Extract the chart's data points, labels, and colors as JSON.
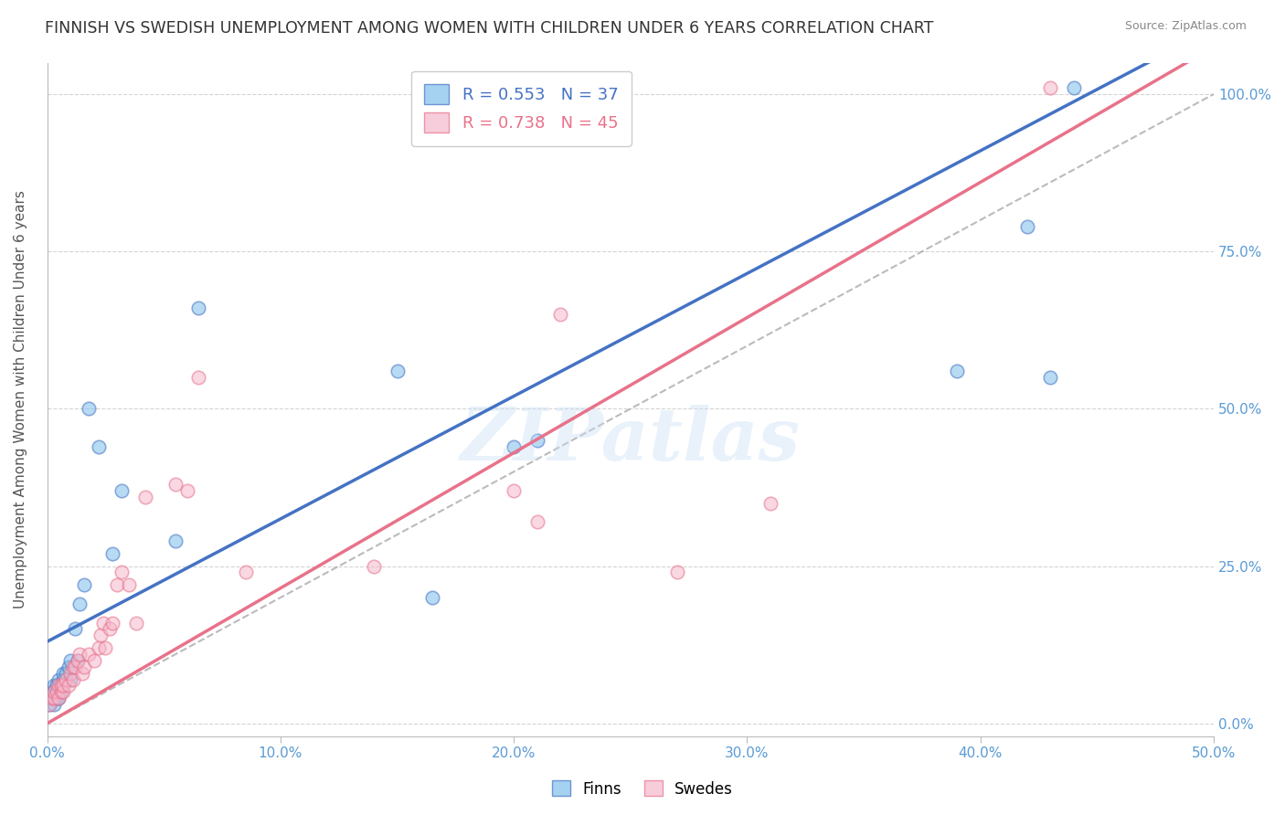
{
  "title": "FINNISH VS SWEDISH UNEMPLOYMENT AMONG WOMEN WITH CHILDREN UNDER 6 YEARS CORRELATION CHART",
  "source": "Source: ZipAtlas.com",
  "ylabel": "Unemployment Among Women with Children Under 6 years",
  "xlabel_ticks": [
    "0.0%",
    "10.0%",
    "20.0%",
    "30.0%",
    "40.0%",
    "50.0%"
  ],
  "ylabel_ticks_right": [
    "0.0%",
    "25.0%",
    "50.0%",
    "75.0%",
    "100.0%"
  ],
  "xlim": [
    0.0,
    0.5
  ],
  "ylim": [
    -0.02,
    1.05
  ],
  "watermark": "ZIPatlas",
  "color_finns": "#7fbfec",
  "color_swedes": "#f5b8cc",
  "color_finns_line": "#4472c4",
  "color_swedes_line": "#e8728a",
  "finns_intercept": 0.13,
  "finns_slope": 1.95,
  "swedes_intercept": 0.0,
  "swedes_slope": 2.15,
  "finns_x": [
    0.001,
    0.002,
    0.002,
    0.003,
    0.003,
    0.003,
    0.004,
    0.004,
    0.005,
    0.005,
    0.005,
    0.006,
    0.006,
    0.007,
    0.007,
    0.008,
    0.009,
    0.01,
    0.01,
    0.012,
    0.013,
    0.014,
    0.016,
    0.018,
    0.022,
    0.028,
    0.032,
    0.055,
    0.065,
    0.15,
    0.165,
    0.2,
    0.21,
    0.39,
    0.42,
    0.43,
    0.44
  ],
  "finns_y": [
    0.03,
    0.04,
    0.05,
    0.03,
    0.05,
    0.06,
    0.04,
    0.06,
    0.04,
    0.05,
    0.07,
    0.06,
    0.05,
    0.07,
    0.08,
    0.08,
    0.09,
    0.1,
    0.07,
    0.15,
    0.1,
    0.19,
    0.22,
    0.5,
    0.44,
    0.27,
    0.37,
    0.29,
    0.66,
    0.56,
    0.2,
    0.44,
    0.45,
    0.56,
    0.79,
    0.55,
    1.01
  ],
  "swedes_x": [
    0.001,
    0.002,
    0.003,
    0.003,
    0.004,
    0.005,
    0.005,
    0.006,
    0.006,
    0.007,
    0.007,
    0.008,
    0.009,
    0.01,
    0.011,
    0.011,
    0.012,
    0.013,
    0.014,
    0.015,
    0.016,
    0.018,
    0.02,
    0.022,
    0.023,
    0.024,
    0.025,
    0.027,
    0.028,
    0.03,
    0.032,
    0.035,
    0.038,
    0.042,
    0.055,
    0.06,
    0.065,
    0.085,
    0.14,
    0.2,
    0.21,
    0.22,
    0.27,
    0.31,
    0.43
  ],
  "swedes_y": [
    0.03,
    0.04,
    0.04,
    0.05,
    0.05,
    0.04,
    0.06,
    0.05,
    0.06,
    0.05,
    0.06,
    0.07,
    0.06,
    0.08,
    0.07,
    0.09,
    0.09,
    0.1,
    0.11,
    0.08,
    0.09,
    0.11,
    0.1,
    0.12,
    0.14,
    0.16,
    0.12,
    0.15,
    0.16,
    0.22,
    0.24,
    0.22,
    0.16,
    0.36,
    0.38,
    0.37,
    0.55,
    0.24,
    0.25,
    0.37,
    0.32,
    0.65,
    0.24,
    0.35,
    1.01
  ]
}
